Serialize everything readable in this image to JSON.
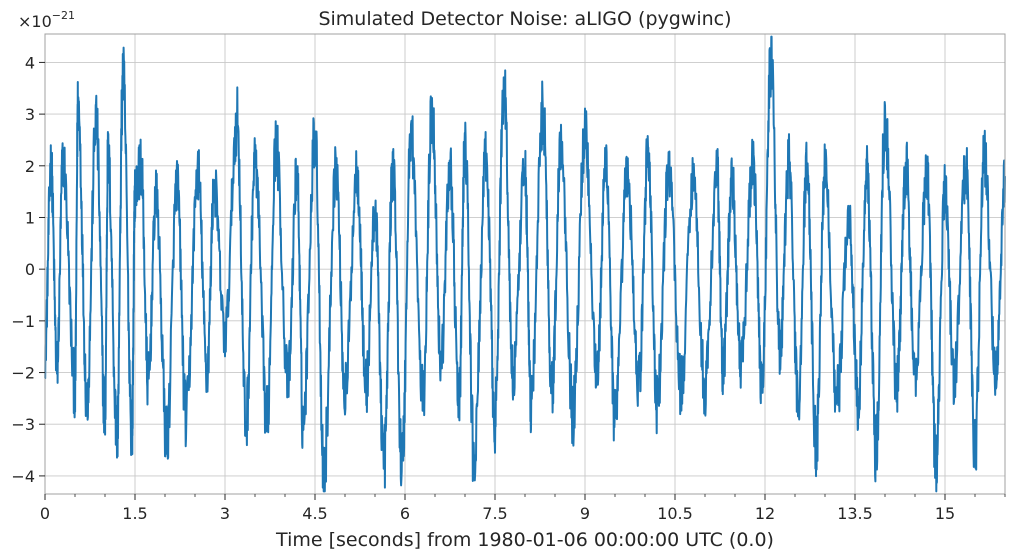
{
  "chart_data": {
    "type": "line",
    "title": "Simulated Detector Noise: aLIGO (pygwinc)",
    "xlabel": "Time [seconds] from 1980-01-06 00:00:00 UTC (0.0)",
    "ylabel": "",
    "y_multiplier": "×10",
    "y_multiplier_exponent": "−21",
    "xlim": [
      0,
      16
    ],
    "ylim": [
      -4.35,
      4.55
    ],
    "x_ticks": [
      0,
      1.5,
      3,
      4.5,
      6,
      7.5,
      9,
      10.5,
      12,
      13.5,
      15
    ],
    "x_tick_labels": [
      "0",
      "1.5",
      "3",
      "4.5",
      "6",
      "7.5",
      "9",
      "10.5",
      "12",
      "13.5",
      "15"
    ],
    "y_ticks": [
      -4,
      -3,
      -2,
      -1,
      0,
      1,
      2,
      3,
      4
    ],
    "y_tick_labels": [
      "−4",
      "−3",
      "−2",
      "−1",
      "0",
      "1",
      "2",
      "3",
      "4"
    ],
    "grid": true,
    "series": [
      {
        "color": "#1f77b4",
        "x": [
          0,
          0.1,
          0.2,
          0.3,
          0.5,
          0.55,
          0.7,
          0.85,
          1.0,
          1.05,
          1.2,
          1.3,
          1.45,
          1.5,
          1.6,
          1.72,
          1.85,
          2.03,
          2.2,
          2.35,
          2.55,
          2.7,
          2.82,
          3.0,
          3.2,
          3.35,
          3.5,
          3.7,
          3.85,
          4.05,
          4.2,
          4.3,
          4.5,
          4.65,
          4.85,
          5.0,
          5.2,
          5.35,
          5.5,
          5.65,
          5.8,
          5.95,
          6.1,
          6.3,
          6.45,
          6.6,
          6.75,
          6.9,
          7.0,
          7.15,
          7.35,
          7.5,
          7.65,
          7.8,
          8.0,
          8.1,
          8.3,
          8.45,
          8.6,
          8.8,
          9.0,
          9.2,
          9.35,
          9.5,
          9.7,
          9.9,
          10.05,
          10.2,
          10.4,
          10.6,
          10.8,
          11.0,
          11.2,
          11.3,
          11.45,
          11.6,
          11.8,
          11.95,
          12.1,
          12.25,
          12.4,
          12.55,
          12.7,
          12.85,
          13.0,
          13.2,
          13.4,
          13.55,
          13.7,
          13.85,
          14.0,
          14.2,
          14.35,
          14.5,
          14.7,
          14.85,
          15.0,
          15.15,
          15.35,
          15.5,
          15.65,
          15.85,
          16.0
        ],
        "y": [
          -1.6,
          2.0,
          -1.9,
          2.1,
          -2.3,
          3.2,
          -2.5,
          2.9,
          -2.8,
          2.2,
          -3.2,
          3.7,
          -3.1,
          1.5,
          2.0,
          -2.2,
          1.4,
          -3.3,
          1.7,
          -2.9,
          1.9,
          -2.0,
          1.6,
          -1.3,
          2.9,
          -3.0,
          2.1,
          -2.9,
          2.4,
          -2.2,
          1.9,
          -3.0,
          2.6,
          -3.9,
          2.0,
          -2.4,
          1.9,
          -2.3,
          1.1,
          -3.7,
          2.0,
          -3.8,
          2.7,
          -2.5,
          3.1,
          -1.8,
          2.0,
          -2.6,
          2.4,
          -3.7,
          2.1,
          -2.9,
          3.6,
          -2.1,
          1.9,
          -2.6,
          3.1,
          -2.3,
          2.5,
          -2.8,
          2.7,
          -2.0,
          2.1,
          -3.0,
          1.8,
          -2.2,
          2.3,
          -2.7,
          2.0,
          -2.3,
          1.8,
          -2.3,
          1.9,
          -2.0,
          1.7,
          -1.9,
          2.1,
          -2.2,
          4.1,
          -1.6,
          2.1,
          -2.6,
          2.0,
          -3.4,
          1.9,
          -2.5,
          1.0,
          -2.6,
          1.9,
          -3.5,
          2.9,
          -2.3,
          2.0,
          -2.1,
          1.9,
          -3.8,
          1.6,
          -2.1,
          2.0,
          -3.5,
          2.2,
          -2.0,
          1.8
        ]
      }
    ]
  }
}
